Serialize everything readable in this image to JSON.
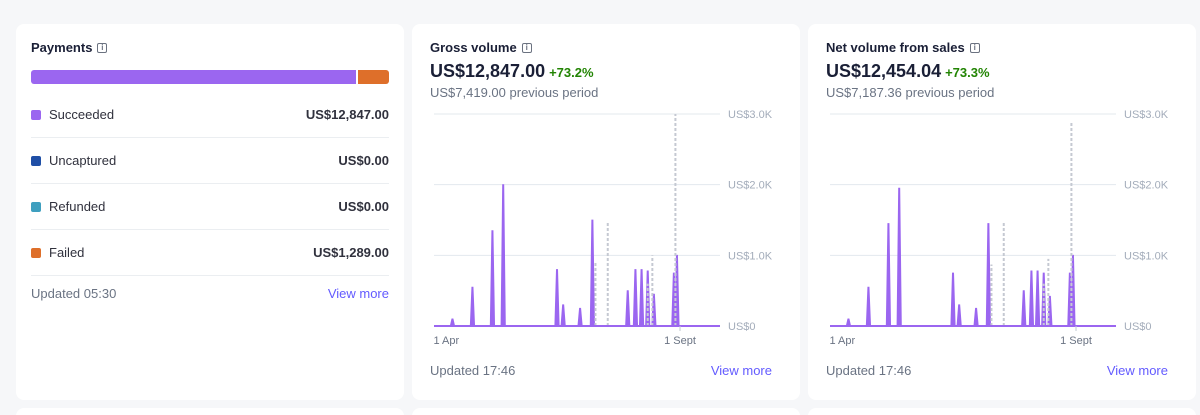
{
  "payments": {
    "title": "Payments",
    "bar": {
      "succeeded_fraction": 0.9088,
      "failed_fraction": 0.0912
    },
    "rows": [
      {
        "label": "Succeeded",
        "amount": "US$12,847.00",
        "color": "#9b66f0"
      },
      {
        "label": "Uncaptured",
        "amount": "US$0.00",
        "color": "#1f4fa6"
      },
      {
        "label": "Refunded",
        "amount": "US$0.00",
        "color": "#3e9fbf"
      },
      {
        "label": "Failed",
        "amount": "US$1,289.00",
        "color": "#de6f2a"
      }
    ],
    "updated": "Updated 05:30",
    "view_more": "View more"
  },
  "gross": {
    "title": "Gross volume",
    "value": "US$12,847.00",
    "change": "+73.2%",
    "previous": "US$7,419.00 previous period",
    "updated": "Updated 17:46",
    "view_more": "View more"
  },
  "net": {
    "title": "Net volume from sales",
    "value": "US$12,454.04",
    "change": "+73.3%",
    "previous": "US$7,187.36 previous period",
    "updated": "Updated 17:46",
    "view_more": "View more"
  },
  "chart_data": [
    {
      "type": "area",
      "chart": "gross",
      "y_tick_labels": [
        "US$0",
        "US$1.0K",
        "US$2.0K",
        "US$3.0K"
      ],
      "x_tick_labels": [
        "1 Apr",
        "1 Sept"
      ],
      "ylim": [
        0,
        3000
      ],
      "xlim": [
        0,
        186
      ],
      "grid": true,
      "series": [
        {
          "style": "solid",
          "color": "#9b66f0",
          "points": [
            [
              12,
              100
            ],
            [
              25,
              550
            ],
            [
              38,
              1350
            ],
            [
              45,
              2000
            ],
            [
              80,
              800
            ],
            [
              84,
              300
            ],
            [
              95,
              250
            ],
            [
              103,
              1500
            ],
            [
              126,
              500
            ],
            [
              131,
              800
            ],
            [
              135,
              800
            ],
            [
              139,
              780
            ],
            [
              143,
              450
            ],
            [
              156,
              750
            ],
            [
              158,
              1000
            ]
          ]
        },
        {
          "style": "dashed",
          "color": "#c5c9d2",
          "points": [
            [
              105,
              900
            ],
            [
              113,
              1480
            ],
            [
              139,
              600
            ],
            [
              142,
              1000
            ],
            [
              157,
              3000
            ]
          ]
        }
      ]
    },
    {
      "type": "area",
      "chart": "net",
      "y_tick_labels": [
        "US$0",
        "US$1.0K",
        "US$2.0K",
        "US$3.0K"
      ],
      "x_tick_labels": [
        "1 Apr",
        "1 Sept"
      ],
      "ylim": [
        0,
        3000
      ],
      "xlim": [
        0,
        186
      ],
      "grid": true,
      "series": [
        {
          "style": "solid",
          "color": "#9b66f0",
          "points": [
            [
              12,
              100
            ],
            [
              25,
              550
            ],
            [
              38,
              1450
            ],
            [
              45,
              1950
            ],
            [
              80,
              750
            ],
            [
              84,
              300
            ],
            [
              95,
              250
            ],
            [
              103,
              1450
            ],
            [
              126,
              500
            ],
            [
              131,
              780
            ],
            [
              135,
              780
            ],
            [
              139,
              750
            ],
            [
              143,
              420
            ],
            [
              156,
              750
            ],
            [
              158,
              1000
            ]
          ]
        },
        {
          "style": "dashed",
          "color": "#c5c9d2",
          "points": [
            [
              105,
              870
            ],
            [
              113,
              1460
            ],
            [
              139,
              600
            ],
            [
              142,
              950
            ],
            [
              157,
              2900
            ]
          ]
        }
      ]
    }
  ]
}
